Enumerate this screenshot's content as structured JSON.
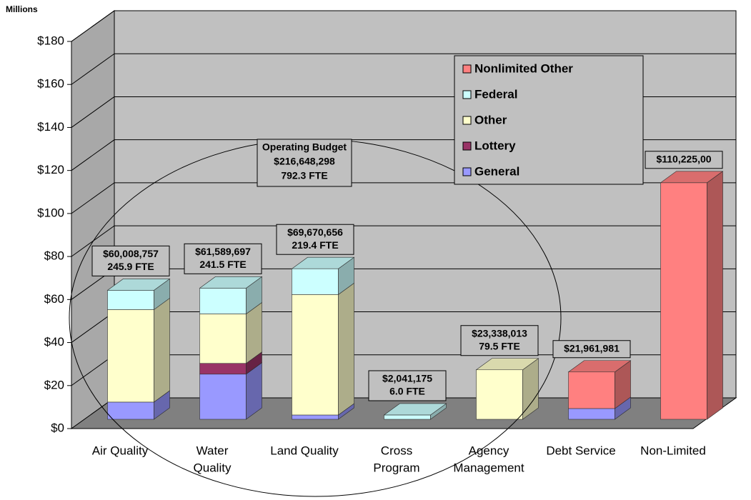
{
  "chart_data": {
    "type": "bar",
    "stacked": true,
    "y_axis_label": "Millions",
    "categories": [
      [
        "Air Quality"
      ],
      [
        "Water",
        "Quality"
      ],
      [
        "Land Quality"
      ],
      [
        "Cross",
        "Program"
      ],
      [
        "Agency",
        "Management"
      ],
      [
        "Debt Service"
      ],
      [
        "Non-Limited"
      ]
    ],
    "series": [
      {
        "name": "General",
        "color": "#9999ff",
        "values": [
          8,
          21,
          2,
          0,
          0,
          5,
          0
        ]
      },
      {
        "name": "Lottery",
        "color": "#993366",
        "values": [
          0,
          5,
          0,
          0,
          0,
          0,
          0
        ]
      },
      {
        "name": "Other",
        "color": "#ffffcc",
        "values": [
          43,
          23,
          56,
          0,
          23,
          0,
          0
        ]
      },
      {
        "name": "Federal",
        "color": "#ccffff",
        "values": [
          9,
          12,
          12,
          2,
          0,
          0,
          0
        ]
      },
      {
        "name": "Nonlimited Other",
        "color": "#ff8080",
        "values": [
          0,
          0,
          0,
          0,
          0,
          17,
          110
        ]
      }
    ],
    "bar_labels": [
      [
        "$60,008,757",
        "245.9 FTE"
      ],
      [
        "$61,589,697",
        "241.5 FTE"
      ],
      [
        "$69,670,656",
        "219.4 FTE"
      ],
      [
        "$2,041,175",
        "6.0 FTE"
      ],
      [
        "$23,338,013",
        "79.5 FTE"
      ],
      [
        "$21,961,981"
      ],
      [
        "$110,225,00"
      ]
    ],
    "group_annotation": [
      "Operating Budget",
      "$216,648,298",
      "792.3 FTE"
    ],
    "ylim": [
      0,
      180
    ],
    "yticks": [
      {
        "value": 0,
        "label": "$0"
      },
      {
        "value": 20,
        "label": "$20"
      },
      {
        "value": 40,
        "label": "$40"
      },
      {
        "value": 60,
        "label": "$60"
      },
      {
        "value": 80,
        "label": "$80"
      },
      {
        "value": 100,
        "label": "$100"
      },
      {
        "value": 120,
        "label": "$120"
      },
      {
        "value": 140,
        "label": "$140"
      },
      {
        "value": 160,
        "label": "$160"
      },
      {
        "value": 180,
        "label": "$180"
      }
    ],
    "grid": true,
    "legend": "upper right"
  }
}
